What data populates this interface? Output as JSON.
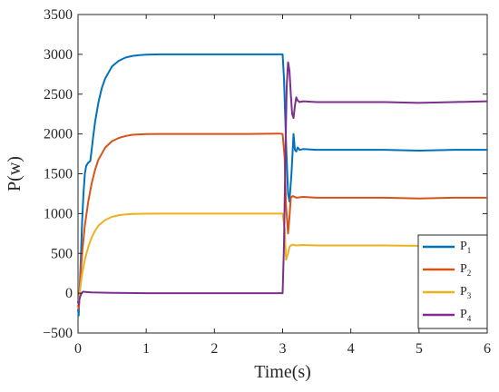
{
  "chart_data": {
    "type": "line",
    "title": "",
    "xlabel": "Time(s)",
    "ylabel": "P(w)",
    "xlim": [
      0,
      6
    ],
    "ylim": [
      -500,
      3500
    ],
    "xticks": [
      0,
      1,
      2,
      3,
      4,
      5,
      6
    ],
    "xtick_labels": [
      "0",
      "1",
      "2",
      "3",
      "4",
      "5",
      "6"
    ],
    "yticks": [
      -500,
      0,
      500,
      1000,
      1500,
      2000,
      2500,
      3000,
      3500
    ],
    "ytick_labels": [
      "−500",
      "0",
      "500",
      "1000",
      "1500",
      "2000",
      "2500",
      "3000",
      "3500"
    ],
    "grid": false,
    "legend_position": "bottom-right",
    "series": [
      {
        "name": "P",
        "subscript": "1",
        "color": "#0072BD",
        "x": [
          0,
          0.01,
          0.02,
          0.04,
          0.06,
          0.08,
          0.1,
          0.12,
          0.15,
          0.18,
          0.2,
          0.22,
          0.25,
          0.3,
          0.35,
          0.4,
          0.5,
          0.6,
          0.7,
          0.8,
          0.9,
          1.0,
          1.2,
          1.4,
          1.6,
          2.0,
          2.5,
          2.95,
          3.0,
          3.02,
          3.05,
          3.08,
          3.1,
          3.13,
          3.16,
          3.18,
          3.2,
          3.22,
          3.25,
          3.3,
          3.5,
          4.0,
          4.5,
          5.0,
          5.5,
          6.0
        ],
        "y": [
          -200,
          -280,
          -50,
          400,
          900,
          1250,
          1500,
          1600,
          1640,
          1660,
          1800,
          1950,
          2150,
          2400,
          2580,
          2700,
          2850,
          2920,
          2960,
          2980,
          2990,
          2995,
          3000,
          3000,
          3000,
          3000,
          3000,
          3000,
          3000,
          2700,
          1900,
          1250,
          1150,
          1500,
          2000,
          1800,
          1780,
          1830,
          1800,
          1810,
          1800,
          1800,
          1800,
          1790,
          1800,
          1800
        ]
      },
      {
        "name": "P",
        "subscript": "2",
        "color": "#D95319",
        "x": [
          0,
          0.01,
          0.02,
          0.04,
          0.06,
          0.1,
          0.15,
          0.2,
          0.25,
          0.3,
          0.4,
          0.5,
          0.6,
          0.7,
          0.8,
          1.0,
          1.2,
          1.5,
          2.0,
          2.5,
          2.95,
          3.0,
          3.03,
          3.05,
          3.08,
          3.1,
          3.12,
          3.15,
          3.2,
          3.3,
          3.5,
          4.0,
          4.5,
          5.0,
          5.5,
          6.0
        ],
        "y": [
          -150,
          -200,
          -60,
          250,
          500,
          850,
          1150,
          1380,
          1550,
          1680,
          1830,
          1910,
          1950,
          1975,
          1990,
          1998,
          2000,
          2000,
          2000,
          2000,
          2005,
          2000,
          1700,
          1100,
          750,
          950,
          1200,
          1220,
          1200,
          1210,
          1200,
          1200,
          1200,
          1190,
          1200,
          1200
        ]
      },
      {
        "name": "P",
        "subscript": "3",
        "color": "#EDB120",
        "x": [
          0,
          0.01,
          0.02,
          0.04,
          0.06,
          0.1,
          0.15,
          0.2,
          0.25,
          0.3,
          0.4,
          0.5,
          0.6,
          0.7,
          0.8,
          1.0,
          1.2,
          1.5,
          2.0,
          2.5,
          2.95,
          3.0,
          3.03,
          3.05,
          3.08,
          3.1,
          3.12,
          3.15,
          3.2,
          3.3,
          3.5,
          4.0,
          4.5,
          5.0,
          5.5,
          6.0
        ],
        "y": [
          -100,
          -150,
          -40,
          120,
          240,
          420,
          580,
          700,
          785,
          850,
          920,
          960,
          980,
          990,
          995,
          998,
          1000,
          1000,
          1000,
          1000,
          1000,
          1000,
          800,
          420,
          500,
          580,
          600,
          610,
          600,
          605,
          600,
          600,
          600,
          595,
          600,
          600
        ]
      },
      {
        "name": "P",
        "subscript": "4",
        "color": "#7E2F8E",
        "x": [
          0,
          0.01,
          0.02,
          0.04,
          0.06,
          0.08,
          0.1,
          0.2,
          0.5,
          1.0,
          1.5,
          2.0,
          2.5,
          2.98,
          3.0,
          3.02,
          3.04,
          3.06,
          3.08,
          3.1,
          3.12,
          3.14,
          3.16,
          3.18,
          3.2,
          3.22,
          3.25,
          3.3,
          3.5,
          4.0,
          4.5,
          5.0,
          5.5,
          6.0
        ],
        "y": [
          -100,
          -150,
          -80,
          -20,
          10,
          20,
          15,
          10,
          5,
          0,
          0,
          0,
          0,
          0,
          0,
          600,
          1700,
          2600,
          2900,
          2800,
          2500,
          2250,
          2200,
          2350,
          2460,
          2420,
          2400,
          2410,
          2400,
          2400,
          2400,
          2390,
          2400,
          2410
        ]
      }
    ]
  }
}
